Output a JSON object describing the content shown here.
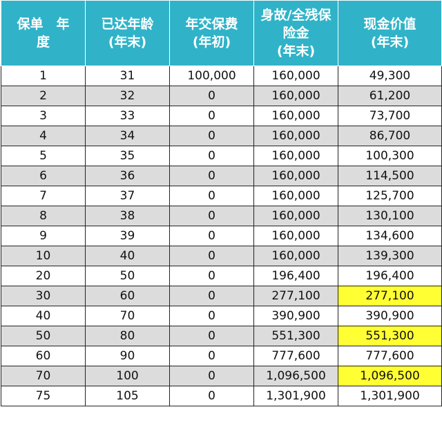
{
  "headers": [
    [
      "保单　年",
      "度"
    ],
    [
      "已达年龄",
      "(年末)"
    ],
    [
      "年交保费",
      "(年初)"
    ],
    [
      "身故/全残保",
      "险金",
      "(年末)"
    ],
    [
      "现金价值",
      "(年末)"
    ]
  ],
  "rows": [
    {
      "year": "1",
      "age": "31",
      "premium": "100,000",
      "death": "160,000",
      "cash": "49,300",
      "hl": false
    },
    {
      "year": "2",
      "age": "32",
      "premium": "0",
      "death": "160,000",
      "cash": "61,200",
      "hl": false
    },
    {
      "year": "3",
      "age": "33",
      "premium": "0",
      "death": "160,000",
      "cash": "73,700",
      "hl": false
    },
    {
      "year": "4",
      "age": "34",
      "premium": "0",
      "death": "160,000",
      "cash": "86,700",
      "hl": false
    },
    {
      "year": "5",
      "age": "35",
      "premium": "0",
      "death": "160,000",
      "cash": "100,300",
      "hl": false
    },
    {
      "year": "6",
      "age": "36",
      "premium": "0",
      "death": "160,000",
      "cash": "114,500",
      "hl": false
    },
    {
      "year": "7",
      "age": "37",
      "premium": "0",
      "death": "160,000",
      "cash": "125,700",
      "hl": false
    },
    {
      "year": "8",
      "age": "38",
      "premium": "0",
      "death": "160,000",
      "cash": "130,100",
      "hl": false
    },
    {
      "year": "9",
      "age": "39",
      "premium": "0",
      "death": "160,000",
      "cash": "134,600",
      "hl": false
    },
    {
      "year": "10",
      "age": "40",
      "premium": "0",
      "death": "160,000",
      "cash": "139,300",
      "hl": false
    },
    {
      "year": "20",
      "age": "50",
      "premium": "0",
      "death": "196,400",
      "cash": "196,400",
      "hl": false
    },
    {
      "year": "30",
      "age": "60",
      "premium": "0",
      "death": "277,100",
      "cash": "277,100",
      "hl": true
    },
    {
      "year": "40",
      "age": "70",
      "premium": "0",
      "death": "390,900",
      "cash": "390,900",
      "hl": false
    },
    {
      "year": "50",
      "age": "80",
      "premium": "0",
      "death": "551,300",
      "cash": "551,300",
      "hl": true
    },
    {
      "year": "60",
      "age": "90",
      "premium": "0",
      "death": "777,600",
      "cash": "777,600",
      "hl": false
    },
    {
      "year": "70",
      "age": "100",
      "premium": "0",
      "death": "1,096,500",
      "cash": "1,096,500",
      "hl": true
    },
    {
      "year": "75",
      "age": "105",
      "premium": "0",
      "death": "1,301,900",
      "cash": "1,301,900",
      "hl": false
    }
  ],
  "colors": {
    "header_bg": "#30b3c8",
    "alt_row_bg": "#dcdcdc",
    "highlight": "#ffff33"
  }
}
